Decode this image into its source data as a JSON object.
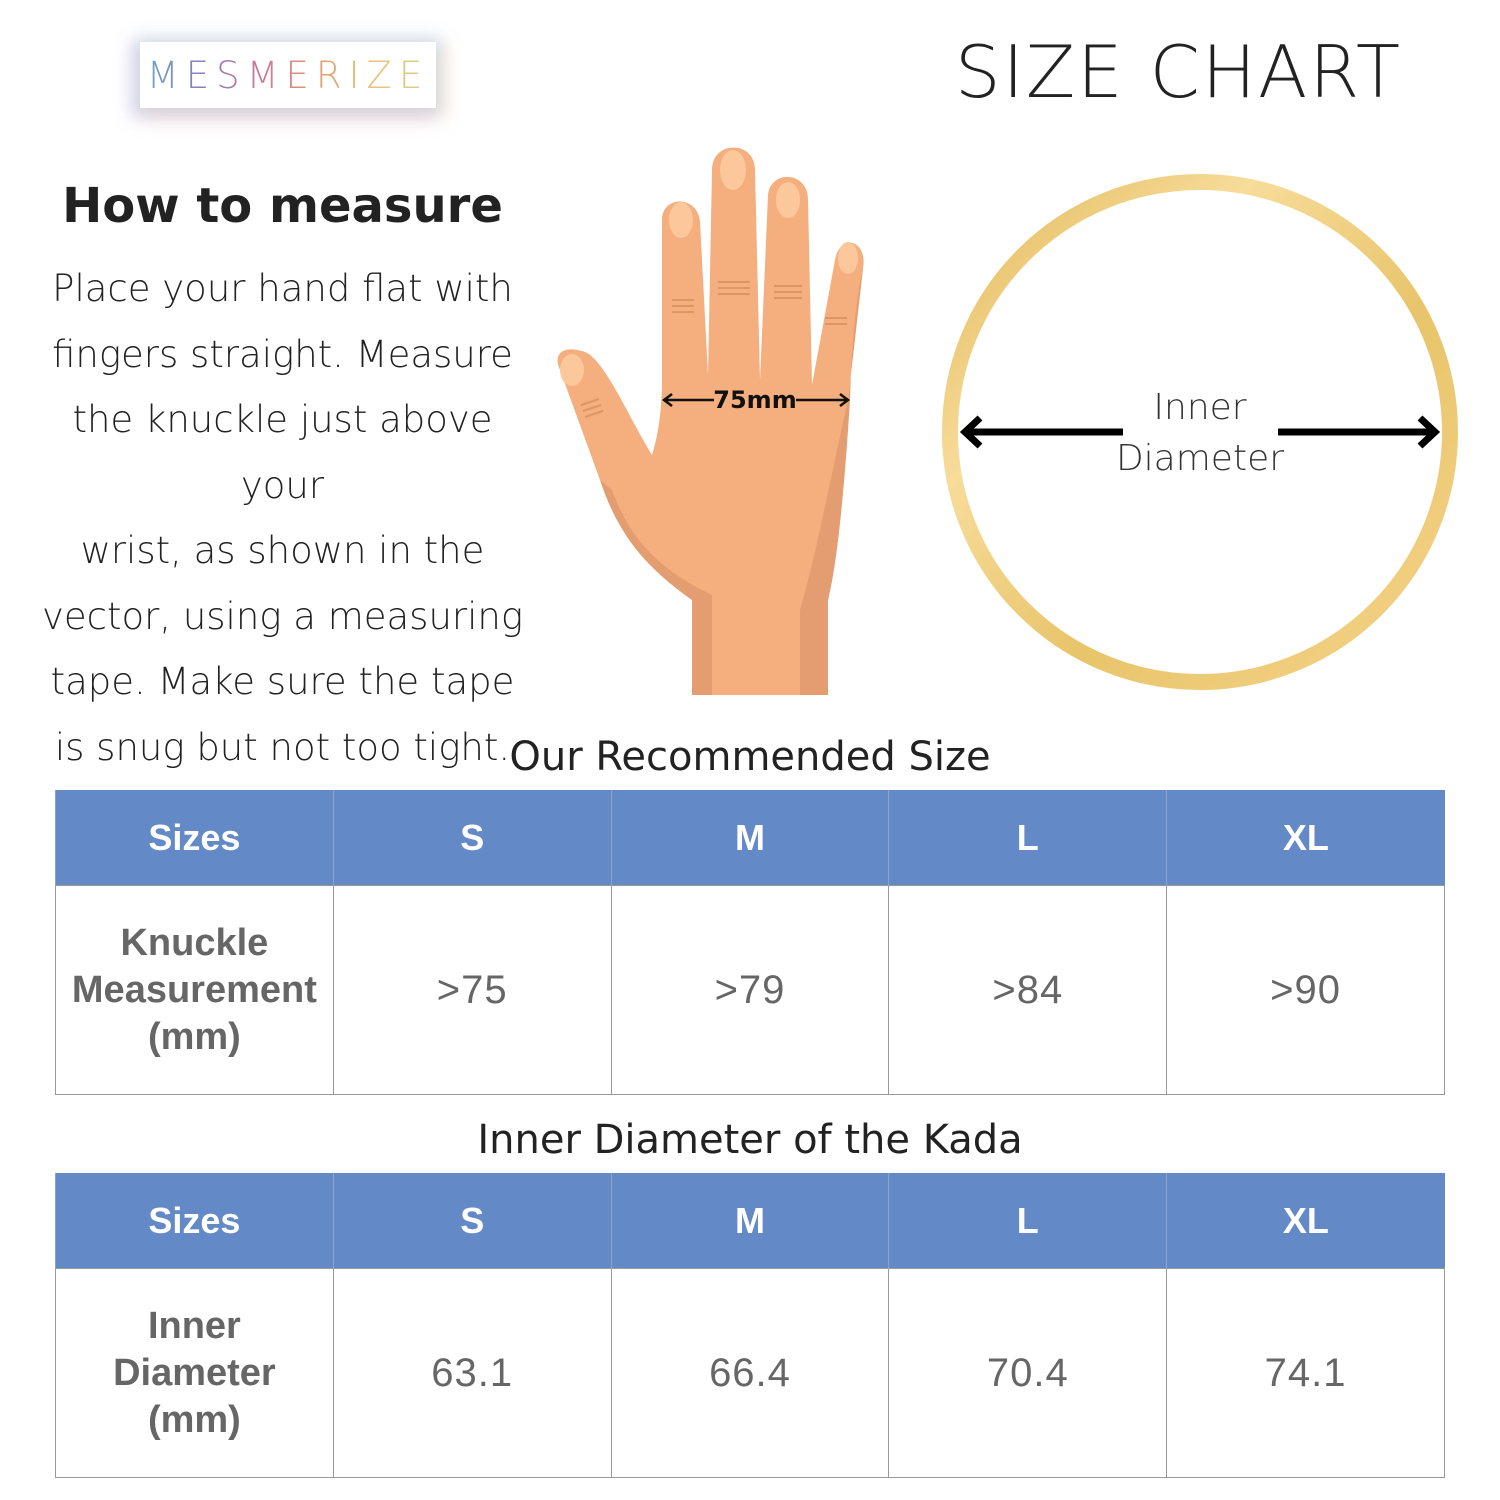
{
  "brand": {
    "logo_text": "MESMERIZE"
  },
  "header": {
    "title": "SIZE CHART"
  },
  "how_to": {
    "heading": "How to measure",
    "lines": [
      "Place your hand flat with",
      "fingers straight. Measure",
      "the knuckle just above your",
      "wrist, as shown in the",
      "vector, using a measuring",
      "tape. Make sure the tape",
      "is snug but not too tight."
    ]
  },
  "hand_illustration": {
    "measure_label": "75mm"
  },
  "ring_illustration": {
    "label_line1": "Inner",
    "label_line2": "Diameter",
    "ring_color": "#e8c46a"
  },
  "table1": {
    "title": "Our Recommended Size",
    "headers": [
      "Sizes",
      "S",
      "M",
      "L",
      "XL"
    ],
    "row_label": [
      "Knuckle",
      "Measurement",
      "(mm)"
    ],
    "values": [
      ">75",
      ">79",
      ">84",
      ">90"
    ]
  },
  "table2": {
    "title": "Inner Diameter of the Kada",
    "headers": [
      "Sizes",
      "S",
      "M",
      "L",
      "XL"
    ],
    "row_label": [
      "Inner",
      "Diameter",
      "(mm)"
    ],
    "values": [
      "63.1",
      "66.4",
      "70.4",
      "74.1"
    ]
  },
  "colors": {
    "header_bg": "#6389c6",
    "header_text": "#ffffff",
    "cell_text": "#666666",
    "skin": "#f5ae7d",
    "skin_shadow": "#e39d70"
  }
}
